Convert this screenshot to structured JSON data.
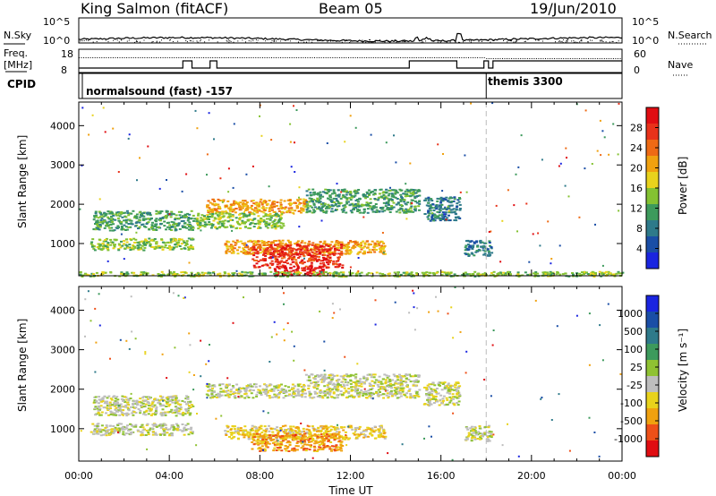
{
  "header": {
    "station": "King Salmon (fitACF)",
    "beam": "Beam 05",
    "date": "19/Jun/2010"
  },
  "top_panels": {
    "nsky_label": "N.Sky",
    "nsearch_label": "N.Search",
    "noise_ticks_left": [
      "10^5",
      "10^0"
    ],
    "noise_ticks_right": [
      "10^5",
      "10^0"
    ],
    "freq_label": "Freq.",
    "freq_unit": "[MHz]",
    "freq_ticks": [
      "18",
      "8"
    ],
    "nave_label": "Nave",
    "nave_ticks": [
      "60",
      "0"
    ],
    "cpid_label": "CPID",
    "cpid_segments": [
      {
        "name": "normalsound (fast) -157",
        "start_hour": 0
      },
      {
        "name": "themis 3300",
        "start_hour": 18
      }
    ]
  },
  "chart_data": [
    {
      "type": "heatmap",
      "title": "",
      "xlabel": "Time UT",
      "ylabel": "Slant Range [km]",
      "xlim": [
        0,
        24
      ],
      "ylim": [
        180,
        4600
      ],
      "x_ticks": [
        "00:00",
        "04:00",
        "08:00",
        "12:00",
        "16:00",
        "20:00",
        "00:00"
      ],
      "x_tick_hours": [
        0,
        4,
        8,
        12,
        16,
        20,
        24
      ],
      "y_ticks": [
        1000,
        2000,
        3000,
        4000
      ],
      "colorbar": {
        "label": "Power [dB]",
        "ticks": [
          "4",
          "8",
          "12",
          "16",
          "20",
          "24",
          "28"
        ],
        "range": [
          0,
          30
        ],
        "colors": [
          "#1a25e0",
          "#1a4ea6",
          "#2e7a8a",
          "#3d9a5c",
          "#84c232",
          "#e8d21c",
          "#f0a10f",
          "#ee6a14",
          "#e8321a",
          "#e00d12"
        ]
      },
      "regions": [
        {
          "t0": 0.6,
          "t1": 5.0,
          "r0": 1350,
          "r1": 1850,
          "level": 3
        },
        {
          "t0": 0.5,
          "t1": 5.0,
          "r0": 850,
          "r1": 1150,
          "level": 4
        },
        {
          "t0": 5.6,
          "t1": 10.0,
          "r0": 1800,
          "r1": 2150,
          "level": 6
        },
        {
          "t0": 5.0,
          "t1": 9.0,
          "r0": 1400,
          "r1": 1800,
          "level": 4
        },
        {
          "t0": 10.0,
          "t1": 15.0,
          "r0": 1800,
          "r1": 2400,
          "level": 3
        },
        {
          "t0": 6.4,
          "t1": 13.5,
          "r0": 750,
          "r1": 1100,
          "level": 6
        },
        {
          "t0": 7.6,
          "t1": 11.6,
          "r0": 400,
          "r1": 1000,
          "level": 8
        },
        {
          "t0": 8.6,
          "t1": 10.8,
          "r0": 200,
          "r1": 450,
          "level": 9
        },
        {
          "t0": 15.2,
          "t1": 16.8,
          "r0": 1600,
          "r1": 2200,
          "level": 2
        },
        {
          "t0": 17.0,
          "t1": 18.2,
          "r0": 700,
          "r1": 1100,
          "level": 2
        },
        {
          "t0": 0.0,
          "t1": 24.0,
          "r0": 180,
          "r1": 300,
          "level": 4
        }
      ]
    },
    {
      "type": "heatmap",
      "title": "",
      "xlabel": "Time UT",
      "ylabel": "Slant Range [km]",
      "xlim": [
        0,
        24
      ],
      "ylim": [
        180,
        4600
      ],
      "x_ticks": [
        "00:00",
        "04:00",
        "08:00",
        "12:00",
        "16:00",
        "20:00",
        "00:00"
      ],
      "x_tick_hours": [
        0,
        4,
        8,
        12,
        16,
        20,
        24
      ],
      "y_ticks": [
        1000,
        2000,
        3000,
        4000
      ],
      "colorbar": {
        "label": "Velocity [m s⁻¹]",
        "ticks": [
          "1000",
          "500",
          "100",
          "25",
          "-25",
          "-100",
          "-500",
          "-1000"
        ],
        "range": [
          -1000,
          1000
        ],
        "colors": [
          "#e00d12",
          "#ee5018",
          "#f0a10f",
          "#e8d21c",
          "#bdbdbd",
          "#8fc232",
          "#3d9a5c",
          "#2e7a8a",
          "#1a4ea6",
          "#1a25e0"
        ]
      },
      "regions": [
        {
          "t0": 0.6,
          "t1": 5.0,
          "r0": 1350,
          "r1": 1850,
          "level": 4
        },
        {
          "t0": 0.5,
          "t1": 5.0,
          "r0": 850,
          "r1": 1150,
          "level": 4
        },
        {
          "t0": 5.6,
          "t1": 10.0,
          "r0": 1800,
          "r1": 2150,
          "level": 4
        },
        {
          "t0": 10.0,
          "t1": 15.0,
          "r0": 1800,
          "r1": 2400,
          "level": 4
        },
        {
          "t0": 6.4,
          "t1": 13.5,
          "r0": 750,
          "r1": 1100,
          "level": 3
        },
        {
          "t0": 7.6,
          "t1": 11.6,
          "r0": 450,
          "r1": 900,
          "level": 2
        },
        {
          "t0": 15.2,
          "t1": 16.8,
          "r0": 1600,
          "r1": 2200,
          "level": 4
        },
        {
          "t0": 17.0,
          "t1": 18.2,
          "r0": 700,
          "r1": 1100,
          "level": 4
        }
      ]
    }
  ]
}
